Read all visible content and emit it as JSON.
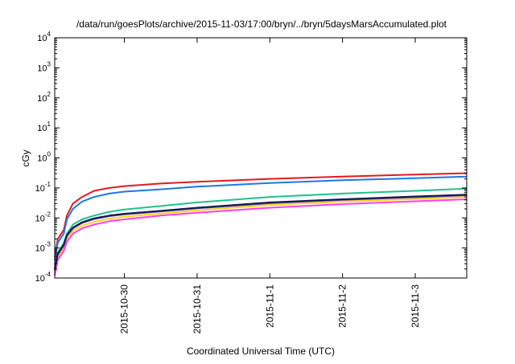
{
  "chart_data": {
    "type": "line",
    "title": "/data/run/goesPlots/archive/2015-11-03/17:00/bryn/../bryn/5daysMarsAccumulated.plot",
    "xlabel": "Coordinated Universal Time (UTC)",
    "ylabel": "cGy",
    "yscale": "log",
    "ylim": [
      0.0001,
      10000
    ],
    "xlim": [
      "2015-10-29 01:00",
      "2015-11-03 17:00"
    ],
    "grid": false,
    "legend": "none",
    "y_ticks": [
      {
        "value": 0.0001,
        "base": "10",
        "exp": "-4"
      },
      {
        "value": 0.001,
        "base": "10",
        "exp": "-3"
      },
      {
        "value": 0.01,
        "base": "10",
        "exp": "-2"
      },
      {
        "value": 0.1,
        "base": "10",
        "exp": "-1"
      },
      {
        "value": 1,
        "base": "10",
        "exp": "0"
      },
      {
        "value": 10,
        "base": "10",
        "exp": "1"
      },
      {
        "value": 100,
        "base": "10",
        "exp": "2"
      },
      {
        "value": 1000,
        "base": "10",
        "exp": "3"
      },
      {
        "value": 10000,
        "base": "10",
        "exp": "4"
      }
    ],
    "x_ticks": [
      {
        "value": "2015-10-30",
        "label": "2015-10-30"
      },
      {
        "value": "2015-10-31",
        "label": "2015-10-31"
      },
      {
        "value": "2015-11-01",
        "label": "2015-11-1"
      },
      {
        "value": "2015-11-02",
        "label": "2015-11-2"
      },
      {
        "value": "2015-11-03",
        "label": "2015-11-3"
      }
    ],
    "series": [
      {
        "color": "#e31a1c",
        "x": [
          "2015-10-29 01:00",
          "2015-10-29 02:00",
          "2015-10-29 04:00",
          "2015-10-29 05:00",
          "2015-10-29 07:00",
          "2015-10-29 10:00",
          "2015-10-29 14:00",
          "2015-10-29 19:00",
          "2015-10-30 00:00",
          "2015-10-30 12:00",
          "2015-10-31 00:00",
          "2015-11-01 00:00",
          "2015-11-02 00:00",
          "2015-11-03 00:00",
          "2015-11-03 17:00"
        ],
        "values": [
          0.0005,
          0.002,
          0.004,
          0.012,
          0.03,
          0.05,
          0.08,
          0.1,
          0.115,
          0.14,
          0.16,
          0.2,
          0.24,
          0.28,
          0.31
        ]
      },
      {
        "color": "#1f77e4",
        "x": [
          "2015-10-29 01:00",
          "2015-10-29 02:00",
          "2015-10-29 04:00",
          "2015-10-29 05:00",
          "2015-10-29 07:00",
          "2015-10-29 10:00",
          "2015-10-29 14:00",
          "2015-10-29 19:00",
          "2015-10-30 00:00",
          "2015-10-30 12:00",
          "2015-10-31 00:00",
          "2015-11-01 00:00",
          "2015-11-02 00:00",
          "2015-11-03 00:00",
          "2015-11-03 17:00"
        ],
        "values": [
          0.0004,
          0.0015,
          0.003,
          0.009,
          0.02,
          0.035,
          0.05,
          0.065,
          0.075,
          0.09,
          0.11,
          0.145,
          0.18,
          0.21,
          0.24
        ]
      },
      {
        "color": "#20c08f",
        "x": [
          "2015-10-29 01:00",
          "2015-10-29 02:00",
          "2015-10-29 04:00",
          "2015-10-29 05:00",
          "2015-10-29 07:00",
          "2015-10-29 10:00",
          "2015-10-29 14:00",
          "2015-10-29 19:00",
          "2015-10-30 00:00",
          "2015-10-30 12:00",
          "2015-10-31 00:00",
          "2015-11-01 00:00",
          "2015-11-02 00:00",
          "2015-11-03 00:00",
          "2015-11-03 17:00"
        ],
        "values": [
          0.0002,
          0.0007,
          0.0015,
          0.003,
          0.006,
          0.009,
          0.012,
          0.016,
          0.019,
          0.025,
          0.033,
          0.05,
          0.065,
          0.08,
          0.095
        ]
      },
      {
        "color": "#ffd21f",
        "x": [
          "2015-10-29 01:00",
          "2015-10-29 02:00",
          "2015-10-29 04:00",
          "2015-10-29 05:00",
          "2015-10-29 07:00",
          "2015-10-29 10:00",
          "2015-10-29 14:00",
          "2015-10-29 19:00",
          "2015-10-30 00:00",
          "2015-10-30 12:00",
          "2015-10-31 00:00",
          "2015-11-01 00:00",
          "2015-11-02 00:00",
          "2015-11-03 00:00",
          "2015-11-03 17:00"
        ],
        "values": [
          0.00015,
          0.0005,
          0.001,
          0.002,
          0.0038,
          0.0055,
          0.0075,
          0.0095,
          0.011,
          0.014,
          0.018,
          0.027,
          0.035,
          0.043,
          0.05
        ]
      },
      {
        "color": "#ff3df2",
        "x": [
          "2015-10-29 01:00",
          "2015-10-29 02:00",
          "2015-10-29 04:00",
          "2015-10-29 05:00",
          "2015-10-29 07:00",
          "2015-10-29 10:00",
          "2015-10-29 14:00",
          "2015-10-29 19:00",
          "2015-10-30 00:00",
          "2015-10-30 12:00",
          "2015-10-31 00:00",
          "2015-11-01 00:00",
          "2015-11-02 00:00",
          "2015-11-03 00:00",
          "2015-11-03 17:00"
        ],
        "values": [
          0.00012,
          0.0004,
          0.0008,
          0.0016,
          0.003,
          0.0045,
          0.006,
          0.0078,
          0.009,
          0.012,
          0.015,
          0.022,
          0.029,
          0.036,
          0.042
        ]
      },
      {
        "color": "#6a3d9a",
        "x": [
          "2015-10-29 01:00",
          "2015-10-29 02:00",
          "2015-10-29 04:00",
          "2015-10-29 05:00",
          "2015-10-29 07:00",
          "2015-10-29 10:00",
          "2015-10-29 14:00",
          "2015-10-29 19:00",
          "2015-10-30 00:00",
          "2015-10-30 12:00",
          "2015-10-31 00:00",
          "2015-11-01 00:00",
          "2015-11-02 00:00",
          "2015-11-03 00:00",
          "2015-11-03 17:00"
        ],
        "values": [
          0.00018,
          0.0006,
          0.0012,
          0.0025,
          0.0045,
          0.0068,
          0.0092,
          0.0115,
          0.0132,
          0.0165,
          0.021,
          0.031,
          0.04,
          0.049,
          0.057
        ]
      },
      {
        "color": "#0d1b52",
        "x": [
          "2015-10-29 01:00",
          "2015-10-29 02:00",
          "2015-10-29 04:00",
          "2015-10-29 05:00",
          "2015-10-29 07:00",
          "2015-10-29 10:00",
          "2015-10-29 14:00",
          "2015-10-29 19:00",
          "2015-10-30 00:00",
          "2015-10-30 12:00",
          "2015-10-31 00:00",
          "2015-11-01 00:00",
          "2015-11-02 00:00",
          "2015-11-03 00:00",
          "2015-11-03 17:00"
        ],
        "values": [
          0.0002,
          0.00065,
          0.0013,
          0.0027,
          0.0048,
          0.0072,
          0.0097,
          0.012,
          0.0138,
          0.0172,
          0.022,
          0.033,
          0.042,
          0.052,
          0.06
        ]
      }
    ]
  }
}
